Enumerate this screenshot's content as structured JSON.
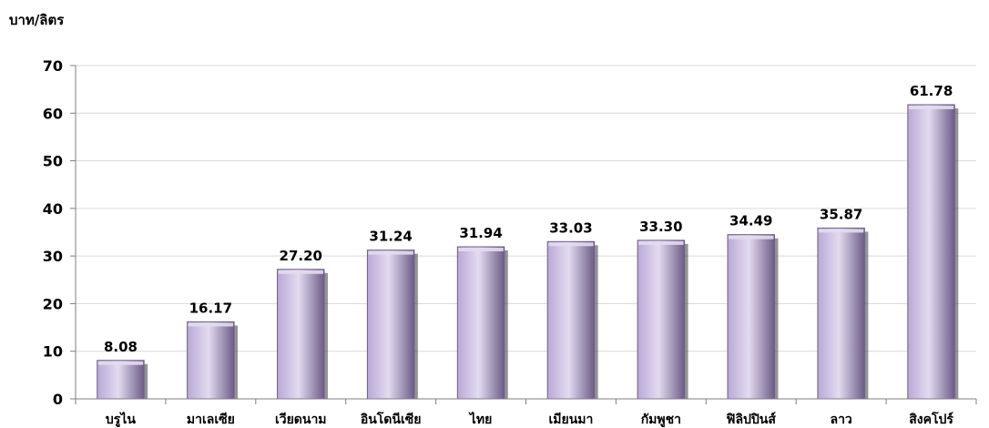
{
  "chart_data": {
    "type": "bar",
    "ylabel": "บาท/ลิตร",
    "categories": [
      "บรูไน",
      "มาเลเซีย",
      "เวียดนาม",
      "อินโดนีเซีย",
      "ไทย",
      "เมียนมา",
      "กัมพูชา",
      "ฟิลิปปินส์",
      "ลาว",
      "สิงคโปร์"
    ],
    "values": [
      8.08,
      16.17,
      27.2,
      31.24,
      31.94,
      33.03,
      33.3,
      34.49,
      35.87,
      61.78
    ],
    "value_labels": [
      "8.08",
      "16.17",
      "27.20",
      "31.24",
      "31.94",
      "33.03",
      "33.30",
      "34.49",
      "35.87",
      "61.78"
    ],
    "ylim": [
      0,
      70
    ],
    "yticks": [
      0,
      10,
      20,
      30,
      40,
      50,
      60,
      70
    ],
    "grid": true,
    "legend": "none",
    "colors": {
      "bar_fill": "#b9a8d6",
      "bar_highlight": "#e3dbf0",
      "bar_edge": "#6d5c88",
      "bar_shadow": "#3a3a3a",
      "grid": "#d9d9d9",
      "axis": "#7f7f7f"
    }
  }
}
